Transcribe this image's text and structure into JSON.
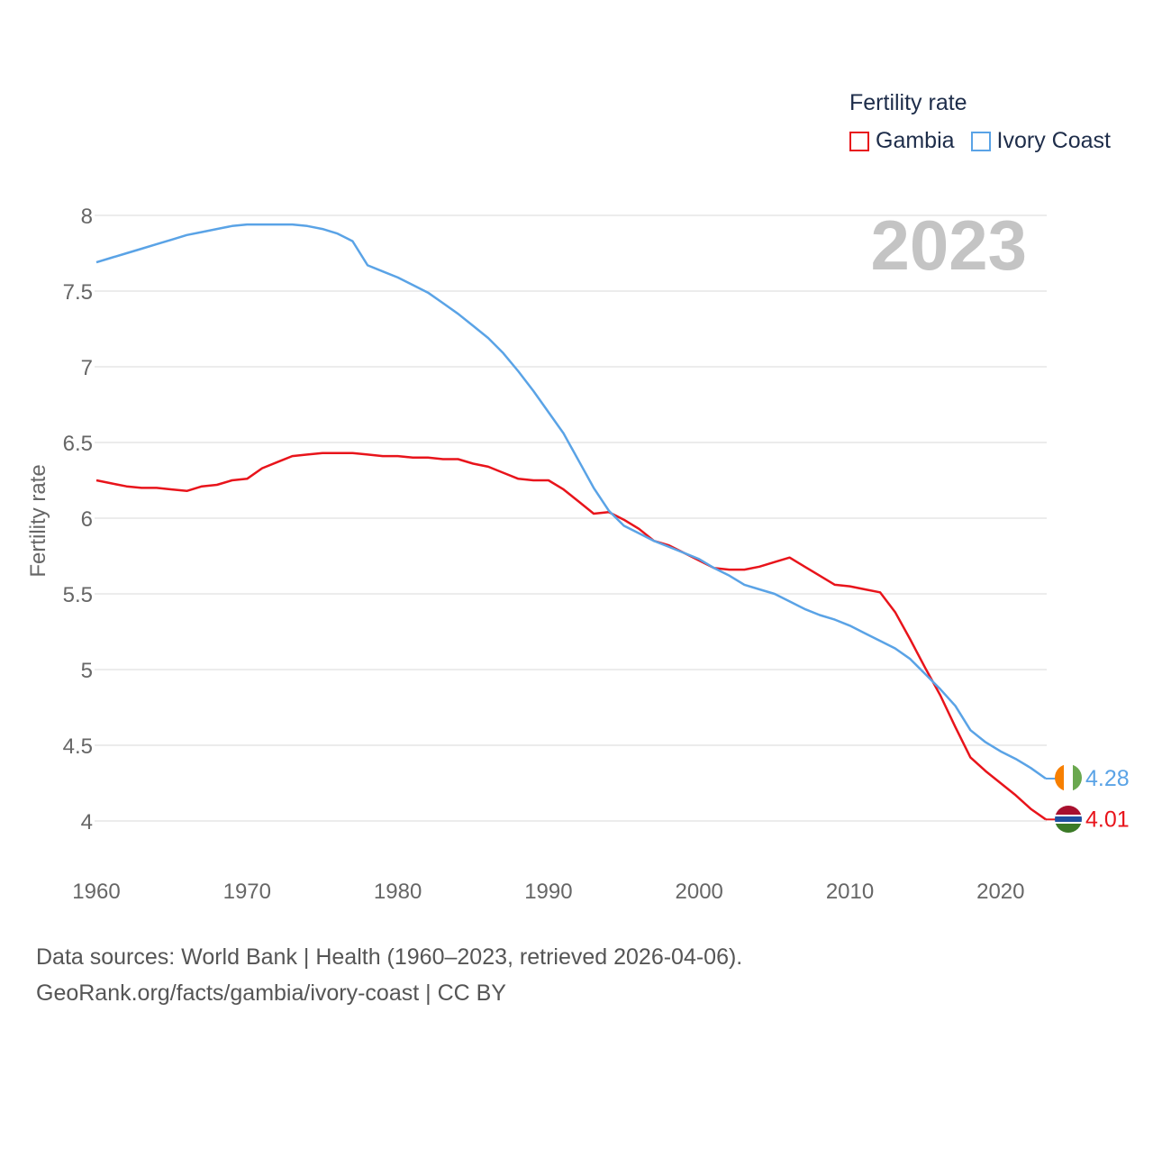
{
  "colors": {
    "gambia": "#e8141b",
    "ivory_coast": "#5aa3e6",
    "grid": "#e6e6e6",
    "axis_text": "#666666",
    "year_watermark": "#c4c4c4"
  },
  "legend": {
    "title": "Fertility rate",
    "items": [
      {
        "label": "Gambia",
        "color": "#e8141b"
      },
      {
        "label": "Ivory Coast",
        "color": "#5aa3e6"
      }
    ]
  },
  "year_watermark": "2023",
  "footer": {
    "line1": "Data sources: World Bank | Health (1960–2023, retrieved 2026-04-06).",
    "line2": "GeoRank.org/facts/gambia/ivory-coast | CC BY"
  },
  "chart_data": {
    "type": "line",
    "title": "",
    "xlabel": "",
    "ylabel": "Fertility rate",
    "xlim": [
      1960,
      2023
    ],
    "ylim": [
      4,
      8
    ],
    "xticks": [
      1960,
      1970,
      1980,
      1990,
      2000,
      2010,
      2020
    ],
    "yticks": [
      4,
      4.5,
      5,
      5.5,
      6,
      6.5,
      7,
      7.5,
      8
    ],
    "ytick_labels": [
      "4",
      "4.5",
      "5",
      "5.5",
      "6",
      "6.5",
      "7",
      "7.5",
      "8"
    ],
    "grid": true,
    "x": [
      1960,
      1961,
      1962,
      1963,
      1964,
      1965,
      1966,
      1967,
      1968,
      1969,
      1970,
      1971,
      1972,
      1973,
      1974,
      1975,
      1976,
      1977,
      1978,
      1979,
      1980,
      1981,
      1982,
      1983,
      1984,
      1985,
      1986,
      1987,
      1988,
      1989,
      1990,
      1991,
      1992,
      1993,
      1994,
      1995,
      1996,
      1997,
      1998,
      1999,
      2000,
      2001,
      2002,
      2003,
      2004,
      2005,
      2006,
      2007,
      2008,
      2009,
      2010,
      2011,
      2012,
      2013,
      2014,
      2015,
      2016,
      2017,
      2018,
      2019,
      2020,
      2021,
      2022,
      2023
    ],
    "series": [
      {
        "name": "Gambia",
        "color": "#e8141b",
        "end_label": "4.01",
        "values": [
          6.25,
          6.23,
          6.21,
          6.2,
          6.2,
          6.19,
          6.18,
          6.21,
          6.22,
          6.25,
          6.26,
          6.33,
          6.37,
          6.41,
          6.42,
          6.43,
          6.43,
          6.43,
          6.42,
          6.41,
          6.41,
          6.4,
          6.4,
          6.39,
          6.39,
          6.36,
          6.34,
          6.3,
          6.26,
          6.25,
          6.25,
          6.19,
          6.11,
          6.03,
          6.04,
          5.99,
          5.93,
          5.85,
          5.82,
          5.77,
          5.72,
          5.67,
          5.66,
          5.66,
          5.68,
          5.71,
          5.74,
          5.68,
          5.62,
          5.56,
          5.55,
          5.53,
          5.51,
          5.38,
          5.2,
          5.01,
          4.83,
          4.62,
          4.42,
          4.33,
          4.25,
          4.17,
          4.08,
          4.01
        ]
      },
      {
        "name": "Ivory Coast",
        "color": "#5aa3e6",
        "end_label": "4.28",
        "values": [
          7.69,
          7.72,
          7.75,
          7.78,
          7.81,
          7.84,
          7.87,
          7.89,
          7.91,
          7.93,
          7.94,
          7.94,
          7.94,
          7.94,
          7.93,
          7.91,
          7.88,
          7.83,
          7.67,
          7.63,
          7.59,
          7.54,
          7.49,
          7.42,
          7.35,
          7.27,
          7.19,
          7.09,
          6.97,
          6.84,
          6.7,
          6.56,
          6.38,
          6.2,
          6.05,
          5.95,
          5.9,
          5.85,
          5.81,
          5.77,
          5.73,
          5.67,
          5.62,
          5.56,
          5.53,
          5.5,
          5.45,
          5.4,
          5.36,
          5.33,
          5.29,
          5.24,
          5.19,
          5.14,
          5.07,
          4.97,
          4.87,
          4.76,
          4.6,
          4.52,
          4.46,
          4.41,
          4.35,
          4.28
        ]
      }
    ]
  }
}
